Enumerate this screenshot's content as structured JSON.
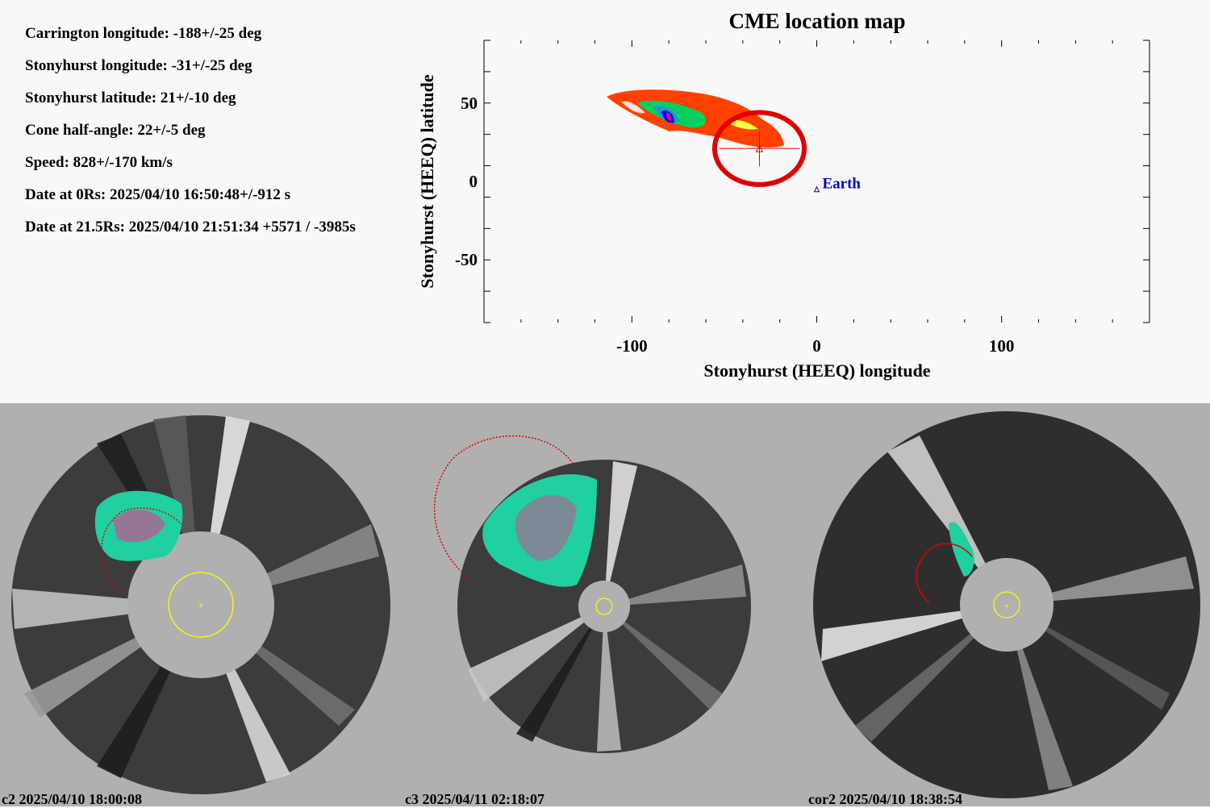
{
  "info": {
    "lines": [
      "Carrington longitude: -188+/-25 deg",
      "Stonyhurst longitude: -31+/-25 deg",
      "Stonyhurst latitude: 21+/-10 deg",
      "Cone half-angle: 22+/-5 deg",
      "Speed: 828+/-170 km/s",
      "Date at 0Rs: 2025/04/10 16:50:48+/-912 s",
      "Date at 21.5Rs: 2025/04/10 21:51:34 +5571 / -3985s"
    ]
  },
  "chart_data": {
    "type": "scatter",
    "title": "CME location map",
    "xlabel": "Stonyhurst (HEEQ) longitude",
    "ylabel": "Stonyhurst (HEEQ) latitude",
    "xlim": [
      -180,
      180
    ],
    "ylim": [
      -90,
      90
    ],
    "xticks": [
      -100,
      0,
      100
    ],
    "yticks": [
      -50,
      0,
      50
    ],
    "grid": false,
    "cme_estimate": {
      "longitude": -31,
      "latitude": 21,
      "longitude_error": 25,
      "latitude_error": 10
    },
    "earth": {
      "label": "Earth",
      "longitude": 0,
      "latitude": -5
    },
    "colors": {
      "estimate": "#e00000",
      "earth": "#0000c8",
      "contour_high": "#ff4000",
      "contour_mid": "#00d060",
      "contour_low": "#0000ff"
    }
  },
  "panels": [
    {
      "label": "c2 2025/04/10 18:00:08"
    },
    {
      "label": "c3 2025/04/11 02:18:07"
    },
    {
      "label": "cor2 2025/04/10 18:38:54"
    }
  ]
}
